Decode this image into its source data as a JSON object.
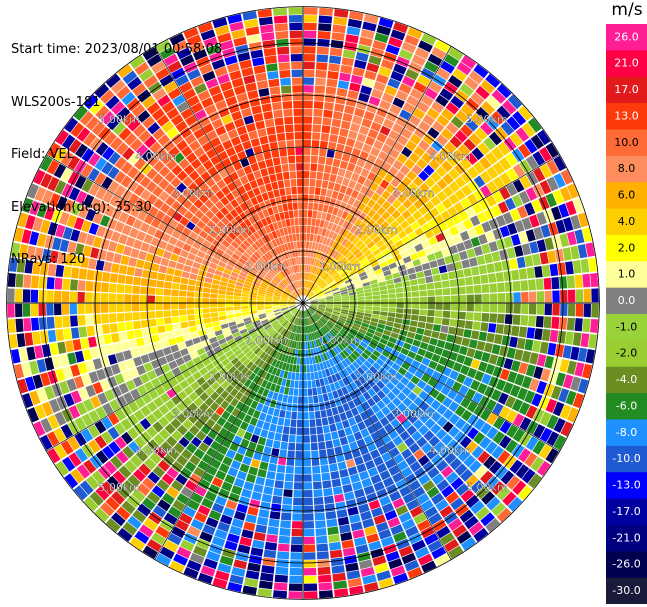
{
  "header": {
    "start_time": "Start time: 2023/08/01 00:58:08",
    "instrument": "WLS200s-181",
    "field": "Field: VEL",
    "elevation": "Elevation(deg): 35.30",
    "nrays": "NRays: 120"
  },
  "chart_data": {
    "type": "heatmap",
    "projection": "polar PPI scan",
    "field": "VEL",
    "unit": "m/s",
    "range_rings_km": [
      1.0,
      2.0,
      3.0,
      4.0,
      5.0
    ],
    "range_ring_labels": [
      "1.00km",
      "2.00km",
      "3.00km",
      "4.00km",
      "5.00km"
    ],
    "max_range_km": 5.7,
    "n_rays": 120,
    "pattern_summary": {
      "north_half": "positive velocities (about 4 to 13 m/s, strongest north-northwest near center)",
      "south_half": "negative velocities (about -2 to -10 m/s, strongest south-southwest)",
      "outer_ranges": "noisy, full-range values beyond about 4 km"
    },
    "colorbar": {
      "title": "m/s",
      "ticks": [
        "26.0",
        "21.0",
        "17.0",
        "13.0",
        "10.0",
        "8.0",
        "6.0",
        "4.0",
        "2.0",
        "1.0",
        "0.0",
        "-1.0",
        "-2.0",
        "-4.0",
        "-6.0",
        "-8.0",
        "-10.0",
        "-13.0",
        "-17.0",
        "-21.0",
        "-26.0",
        "-30.0"
      ],
      "colors": [
        "#ff1e96",
        "#ff0044",
        "#e31a1c",
        "#ff3a0a",
        "#ff6a36",
        "#fd8d5c",
        "#ffb000",
        "#fed000",
        "#ffff00",
        "#ffff99",
        "#808080",
        "#9ad23a",
        "#9acd32",
        "#6b8e23",
        "#228b22",
        "#1e90ff",
        "#1e5ad2",
        "#0000ff",
        "#0000a0",
        "#000080",
        "#000050",
        "#1a1a3a"
      ]
    }
  }
}
